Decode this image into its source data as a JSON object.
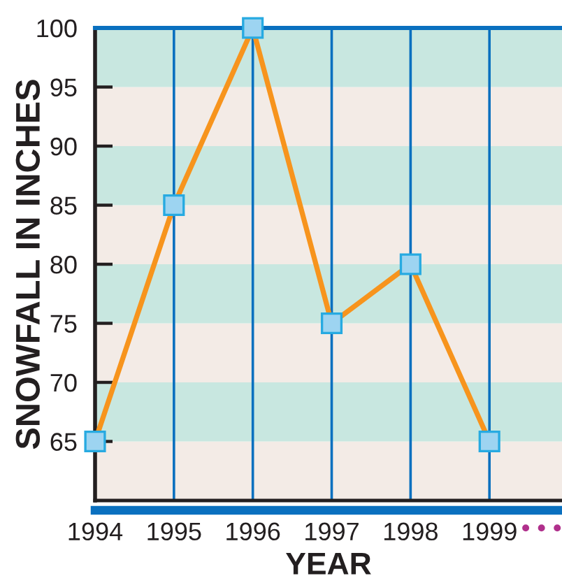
{
  "chart_data": {
    "type": "line",
    "xlabel": "YEAR",
    "ylabel": "SNOWFALL IN INCHES",
    "categories": [
      "1994",
      "1995",
      "1996",
      "1997",
      "1998",
      "1999"
    ],
    "series": [
      {
        "color": "#f7941d",
        "values": [
          65,
          85,
          100,
          75,
          80,
          65
        ]
      }
    ],
    "ylim": [
      60,
      100
    ],
    "yticks": [
      65,
      70,
      75,
      80,
      85,
      90,
      95,
      100
    ],
    "grid": "x",
    "marker": "square",
    "line_style": "solid",
    "bands": [
      {
        "axis": "y",
        "from": 60,
        "to": 65,
        "color": "#f3ebe6"
      },
      {
        "axis": "y",
        "from": 65,
        "to": 70,
        "color": "#c8e7e0"
      },
      {
        "axis": "y",
        "from": 70,
        "to": 75,
        "color": "#f3ebe6"
      },
      {
        "axis": "y",
        "from": 75,
        "to": 80,
        "color": "#c8e7e0"
      },
      {
        "axis": "y",
        "from": 80,
        "to": 85,
        "color": "#f3ebe6"
      },
      {
        "axis": "y",
        "from": 85,
        "to": 90,
        "color": "#c8e7e0"
      },
      {
        "axis": "y",
        "from": 90,
        "to": 95,
        "color": "#f3ebe6"
      },
      {
        "axis": "y",
        "from": 95,
        "to": 100,
        "color": "#c8e7e0"
      }
    ]
  }
}
